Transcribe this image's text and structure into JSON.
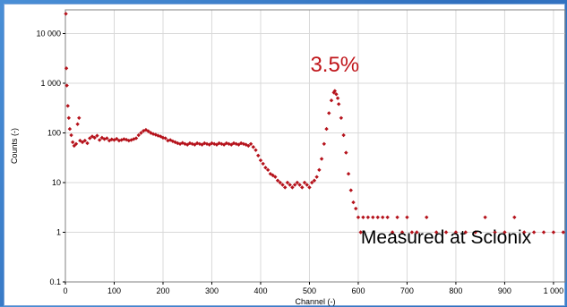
{
  "chart_data": {
    "type": "scatter",
    "title": "",
    "xlabel": "Channel (-)",
    "ylabel": "Counts (-)",
    "xlim": [
      0,
      1024
    ],
    "ylim": [
      0.1,
      30000
    ],
    "yscale": "log",
    "grid": true,
    "marker_color": "#b5121b",
    "x_ticks": [
      {
        "value": 0,
        "label": "0"
      },
      {
        "value": 100,
        "label": "100"
      },
      {
        "value": 200,
        "label": "200"
      },
      {
        "value": 300,
        "label": "300"
      },
      {
        "value": 400,
        "label": "400"
      },
      {
        "value": 500,
        "label": "500"
      },
      {
        "value": 600,
        "label": "600"
      },
      {
        "value": 700,
        "label": "700"
      },
      {
        "value": 800,
        "label": "800"
      },
      {
        "value": 900,
        "label": "900"
      },
      {
        "value": 1000,
        "label": "1 000"
      }
    ],
    "y_ticks": [
      {
        "value": 0.1,
        "label": "0.1"
      },
      {
        "value": 1,
        "label": "1"
      },
      {
        "value": 10,
        "label": "10"
      },
      {
        "value": 100,
        "label": "100"
      },
      {
        "value": 1000,
        "label": "1 000"
      },
      {
        "value": 10000,
        "label": "10 000"
      }
    ],
    "annotations": [
      {
        "text": "3.5%",
        "x": 552,
        "y": 1700,
        "color": "#c0161b"
      },
      {
        "text": "Measured at Scionix",
        "x": 780,
        "y": 0.6,
        "color": "#000000"
      }
    ],
    "series": [
      {
        "points": [
          [
            1,
            25000
          ],
          [
            2,
            2000
          ],
          [
            3,
            900
          ],
          [
            5,
            350
          ],
          [
            7,
            200
          ],
          [
            9,
            120
          ],
          [
            12,
            90
          ],
          [
            15,
            65
          ],
          [
            18,
            55
          ],
          [
            22,
            60
          ],
          [
            25,
            150
          ],
          [
            28,
            200
          ],
          [
            30,
            70
          ],
          [
            35,
            65
          ],
          [
            40,
            70
          ],
          [
            45,
            62
          ],
          [
            50,
            78
          ],
          [
            55,
            85
          ],
          [
            60,
            80
          ],
          [
            65,
            88
          ],
          [
            70,
            72
          ],
          [
            75,
            80
          ],
          [
            80,
            75
          ],
          [
            85,
            78
          ],
          [
            90,
            70
          ],
          [
            95,
            74
          ],
          [
            100,
            72
          ],
          [
            105,
            76
          ],
          [
            110,
            70
          ],
          [
            115,
            72
          ],
          [
            120,
            75
          ],
          [
            125,
            73
          ],
          [
            130,
            70
          ],
          [
            135,
            72
          ],
          [
            140,
            75
          ],
          [
            145,
            78
          ],
          [
            150,
            90
          ],
          [
            155,
            100
          ],
          [
            160,
            110
          ],
          [
            165,
            115
          ],
          [
            170,
            108
          ],
          [
            175,
            100
          ],
          [
            180,
            95
          ],
          [
            185,
            92
          ],
          [
            190,
            88
          ],
          [
            195,
            85
          ],
          [
            200,
            80
          ],
          [
            205,
            78
          ],
          [
            210,
            70
          ],
          [
            215,
            72
          ],
          [
            220,
            68
          ],
          [
            225,
            65
          ],
          [
            230,
            62
          ],
          [
            235,
            60
          ],
          [
            240,
            63
          ],
          [
            245,
            60
          ],
          [
            250,
            58
          ],
          [
            255,
            62
          ],
          [
            260,
            60
          ],
          [
            265,
            58
          ],
          [
            270,
            62
          ],
          [
            275,
            60
          ],
          [
            280,
            58
          ],
          [
            285,
            62
          ],
          [
            290,
            60
          ],
          [
            295,
            58
          ],
          [
            300,
            62
          ],
          [
            305,
            60
          ],
          [
            310,
            58
          ],
          [
            315,
            62
          ],
          [
            320,
            60
          ],
          [
            325,
            58
          ],
          [
            330,
            62
          ],
          [
            335,
            60
          ],
          [
            340,
            58
          ],
          [
            345,
            62
          ],
          [
            350,
            60
          ],
          [
            355,
            58
          ],
          [
            360,
            62
          ],
          [
            365,
            60
          ],
          [
            370,
            58
          ],
          [
            375,
            55
          ],
          [
            380,
            60
          ],
          [
            385,
            52
          ],
          [
            390,
            45
          ],
          [
            395,
            35
          ],
          [
            400,
            28
          ],
          [
            405,
            24
          ],
          [
            410,
            20
          ],
          [
            415,
            18
          ],
          [
            420,
            15
          ],
          [
            425,
            14
          ],
          [
            430,
            13
          ],
          [
            435,
            11
          ],
          [
            440,
            10
          ],
          [
            445,
            9
          ],
          [
            450,
            8
          ],
          [
            455,
            10
          ],
          [
            460,
            9
          ],
          [
            465,
            8
          ],
          [
            470,
            9
          ],
          [
            475,
            10
          ],
          [
            480,
            9
          ],
          [
            485,
            8
          ],
          [
            490,
            10
          ],
          [
            495,
            9
          ],
          [
            500,
            8
          ],
          [
            505,
            10
          ],
          [
            510,
            11
          ],
          [
            515,
            13
          ],
          [
            520,
            18
          ],
          [
            525,
            30
          ],
          [
            530,
            60
          ],
          [
            535,
            120
          ],
          [
            540,
            250
          ],
          [
            545,
            450
          ],
          [
            550,
            650
          ],
          [
            552,
            700
          ],
          [
            555,
            600
          ],
          [
            558,
            500
          ],
          [
            560,
            380
          ],
          [
            565,
            200
          ],
          [
            570,
            90
          ],
          [
            575,
            40
          ],
          [
            580,
            15
          ],
          [
            585,
            7
          ],
          [
            590,
            4
          ],
          [
            595,
            3
          ],
          [
            600,
            2
          ],
          [
            605,
            1
          ],
          [
            610,
            2
          ],
          [
            620,
            2
          ],
          [
            630,
            2
          ],
          [
            640,
            2
          ],
          [
            650,
            2
          ],
          [
            660,
            2
          ],
          [
            670,
            1
          ],
          [
            680,
            2
          ],
          [
            690,
            1
          ],
          [
            700,
            2
          ],
          [
            710,
            1
          ],
          [
            720,
            1
          ],
          [
            740,
            2
          ],
          [
            760,
            1
          ],
          [
            780,
            1
          ],
          [
            800,
            1
          ],
          [
            820,
            1
          ],
          [
            840,
            1
          ],
          [
            860,
            2
          ],
          [
            880,
            1
          ],
          [
            900,
            1
          ],
          [
            920,
            2
          ],
          [
            940,
            1
          ],
          [
            960,
            1
          ],
          [
            980,
            1
          ],
          [
            1000,
            1
          ],
          [
            1020,
            1
          ]
        ]
      }
    ]
  }
}
